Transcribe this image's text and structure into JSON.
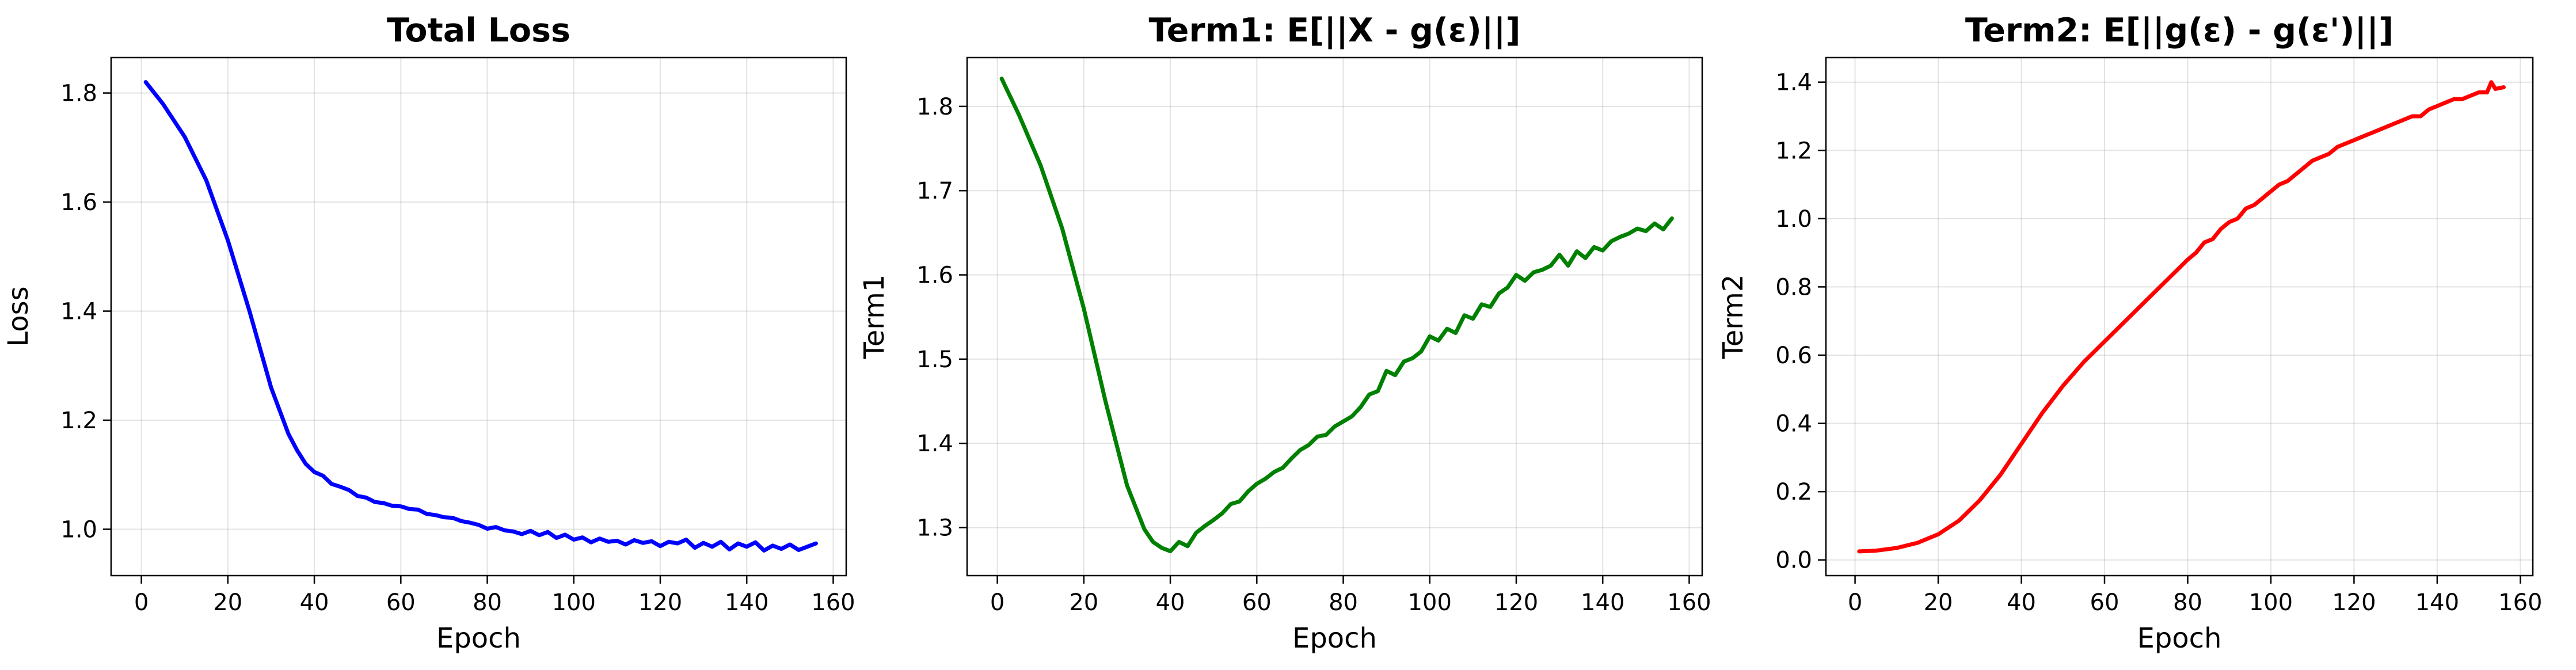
{
  "figure": {
    "panel_titles": [
      "Total Loss",
      "Term1: E[||X - g(ε)||]",
      "Term2: E[||g(ε) - g(ε')||]"
    ]
  },
  "chart_data": [
    {
      "type": "line",
      "title": "Total Loss",
      "xlabel": "Epoch",
      "ylabel": "Loss",
      "xlim": [
        -7,
        163
      ],
      "ylim": [
        0.915,
        1.865
      ],
      "xticks": [
        0,
        20,
        40,
        60,
        80,
        100,
        120,
        140,
        160
      ],
      "yticks": [
        1.0,
        1.2,
        1.4,
        1.6,
        1.8
      ],
      "grid": true,
      "color": "#0000ff",
      "series": [
        {
          "x": [
            1,
            5,
            10,
            15,
            20,
            25,
            30,
            34,
            36,
            38,
            40,
            42,
            44,
            46,
            48,
            50,
            52,
            54,
            56,
            58,
            60,
            62,
            64,
            66,
            68,
            70,
            72,
            74,
            76,
            78,
            80,
            82,
            84,
            86,
            88,
            90,
            92,
            94,
            96,
            98,
            100,
            102,
            104,
            106,
            108,
            110,
            112,
            114,
            116,
            118,
            120,
            122,
            124,
            126,
            128,
            130,
            132,
            134,
            136,
            138,
            140,
            142,
            144,
            146,
            148,
            150,
            152,
            154,
            156
          ],
          "y": [
            1.82,
            1.78,
            1.72,
            1.64,
            1.53,
            1.4,
            1.26,
            1.175,
            1.145,
            1.12,
            1.105,
            1.098,
            1.083,
            1.078,
            1.072,
            1.061,
            1.058,
            1.05,
            1.048,
            1.043,
            1.042,
            1.037,
            1.036,
            1.028,
            1.026,
            1.022,
            1.021,
            1.015,
            1.012,
            1.008,
            1.001,
            1.004,
            0.998,
            0.996,
            0.991,
            0.997,
            0.989,
            0.995,
            0.984,
            0.99,
            0.981,
            0.985,
            0.976,
            0.983,
            0.977,
            0.979,
            0.972,
            0.98,
            0.975,
            0.978,
            0.969,
            0.977,
            0.974,
            0.981,
            0.966,
            0.975,
            0.968,
            0.977,
            0.963,
            0.974,
            0.968,
            0.976,
            0.961,
            0.97,
            0.964,
            0.972,
            0.962,
            0.968,
            0.974
          ]
        }
      ]
    },
    {
      "type": "line",
      "title": "Term1: E[||X - g(ε)||]",
      "xlabel": "Epoch",
      "ylabel": "Term1",
      "xlim": [
        -7,
        163
      ],
      "ylim": [
        1.243,
        1.858
      ],
      "xticks": [
        0,
        20,
        40,
        60,
        80,
        100,
        120,
        140,
        160
      ],
      "yticks": [
        1.3,
        1.4,
        1.5,
        1.6,
        1.7,
        1.8
      ],
      "grid": true,
      "color": "#008000",
      "series": [
        {
          "x": [
            1,
            5,
            10,
            15,
            20,
            25,
            30,
            34,
            36,
            38,
            40,
            42,
            44,
            46,
            48,
            50,
            52,
            54,
            56,
            58,
            60,
            62,
            64,
            66,
            68,
            70,
            72,
            74,
            76,
            78,
            80,
            82,
            84,
            86,
            88,
            90,
            92,
            94,
            96,
            98,
            100,
            102,
            104,
            106,
            108,
            110,
            112,
            114,
            116,
            118,
            120,
            122,
            124,
            126,
            128,
            130,
            132,
            134,
            136,
            138,
            140,
            142,
            144,
            146,
            148,
            150,
            152,
            154,
            156
          ],
          "y": [
            1.833,
            1.79,
            1.73,
            1.655,
            1.56,
            1.45,
            1.35,
            1.298,
            1.283,
            1.276,
            1.272,
            1.283,
            1.278,
            1.294,
            1.302,
            1.309,
            1.317,
            1.328,
            1.331,
            1.343,
            1.352,
            1.358,
            1.366,
            1.371,
            1.382,
            1.392,
            1.398,
            1.408,
            1.41,
            1.42,
            1.426,
            1.432,
            1.443,
            1.458,
            1.462,
            1.486,
            1.481,
            1.497,
            1.501,
            1.509,
            1.527,
            1.522,
            1.536,
            1.531,
            1.552,
            1.548,
            1.565,
            1.562,
            1.578,
            1.585,
            1.6,
            1.593,
            1.603,
            1.606,
            1.611,
            1.624,
            1.611,
            1.628,
            1.62,
            1.633,
            1.629,
            1.64,
            1.645,
            1.649,
            1.655,
            1.652,
            1.661,
            1.654,
            1.667
          ]
        }
      ]
    },
    {
      "type": "line",
      "title": "Term2: E[||g(ε) - g(ε')||]",
      "xlabel": "Epoch",
      "ylabel": "Term2",
      "xlim": [
        -7,
        163
      ],
      "ylim": [
        -0.046,
        1.472
      ],
      "xticks": [
        0,
        20,
        40,
        60,
        80,
        100,
        120,
        140,
        160
      ],
      "yticks": [
        0.0,
        0.2,
        0.4,
        0.6,
        0.8,
        1.0,
        1.2,
        1.4
      ],
      "grid": true,
      "color": "#ff0000",
      "series": [
        {
          "x": [
            1,
            5,
            10,
            15,
            20,
            25,
            30,
            35,
            40,
            45,
            50,
            55,
            60,
            65,
            70,
            75,
            80,
            82,
            84,
            86,
            88,
            90,
            92,
            94,
            96,
            98,
            100,
            102,
            104,
            106,
            108,
            110,
            112,
            114,
            116,
            118,
            120,
            122,
            124,
            126,
            128,
            130,
            132,
            134,
            136,
            138,
            140,
            142,
            144,
            146,
            148,
            150,
            152,
            153,
            154,
            156
          ],
          "y": [
            0.025,
            0.027,
            0.035,
            0.05,
            0.075,
            0.115,
            0.175,
            0.25,
            0.34,
            0.43,
            0.51,
            0.58,
            0.64,
            0.7,
            0.76,
            0.82,
            0.88,
            0.9,
            0.93,
            0.94,
            0.97,
            0.99,
            1.0,
            1.03,
            1.04,
            1.06,
            1.08,
            1.1,
            1.11,
            1.13,
            1.15,
            1.17,
            1.18,
            1.19,
            1.21,
            1.22,
            1.23,
            1.24,
            1.25,
            1.26,
            1.27,
            1.28,
            1.29,
            1.3,
            1.3,
            1.32,
            1.33,
            1.34,
            1.35,
            1.35,
            1.36,
            1.37,
            1.37,
            1.4,
            1.38,
            1.385
          ]
        }
      ]
    }
  ]
}
